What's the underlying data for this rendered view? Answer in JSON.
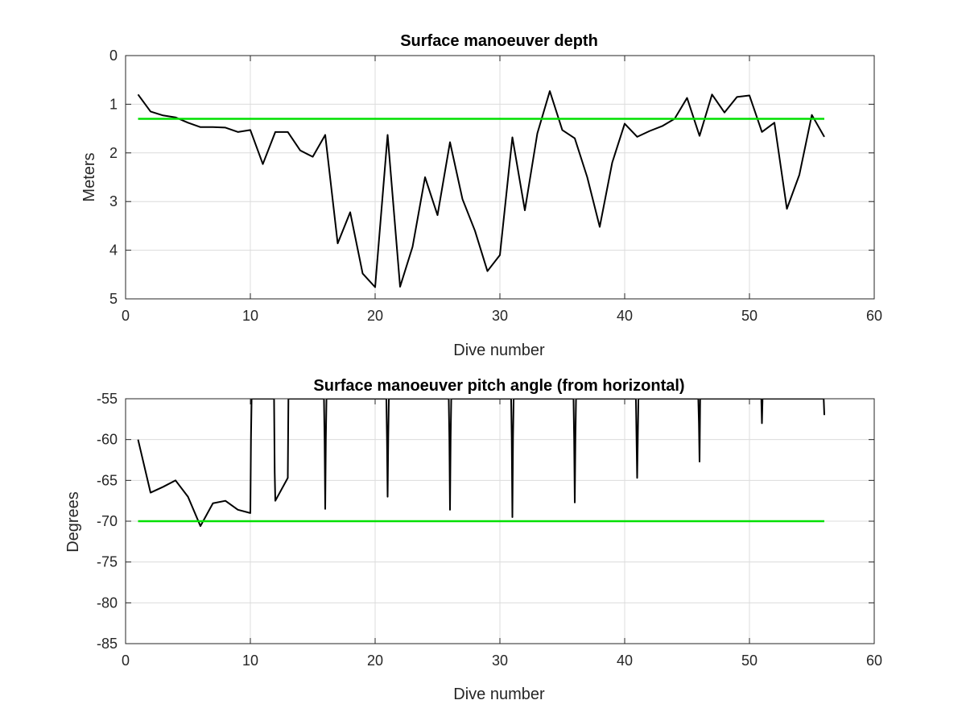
{
  "chart_data": [
    {
      "type": "line",
      "title": "Surface manoeuver depth",
      "xlabel": "Dive number",
      "ylabel": "Meters",
      "xlim": [
        0,
        60
      ],
      "ylim": [
        0,
        5
      ],
      "y_reversed": true,
      "grid": true,
      "xticks": [
        "0",
        "10",
        "20",
        "30",
        "40",
        "50",
        "60"
      ],
      "yticks": [
        "0",
        "1",
        "2",
        "3",
        "4",
        "5"
      ],
      "series": [
        {
          "color": "#000000",
          "x": [
            1,
            2,
            3,
            4,
            5,
            6,
            7,
            8,
            9,
            10,
            11,
            12,
            13,
            14,
            15,
            16,
            17,
            18,
            19,
            20,
            21,
            22,
            23,
            24,
            25,
            26,
            27,
            28,
            29,
            30,
            31,
            32,
            33,
            34,
            35,
            36,
            37,
            38,
            39,
            40,
            41,
            42,
            43,
            44,
            45,
            46,
            47,
            48,
            49,
            50,
            51,
            52,
            53,
            54,
            55,
            56
          ],
          "y": [
            0.8,
            1.15,
            1.23,
            1.27,
            1.38,
            1.47,
            1.47,
            1.48,
            1.57,
            1.53,
            2.23,
            1.57,
            1.57,
            1.95,
            2.08,
            1.63,
            3.86,
            3.22,
            4.48,
            4.76,
            1.63,
            4.75,
            3.93,
            2.5,
            3.28,
            1.78,
            2.95,
            3.6,
            4.43,
            4.1,
            1.68,
            3.18,
            1.6,
            0.73,
            1.53,
            1.7,
            2.5,
            3.52,
            2.2,
            1.4,
            1.67,
            1.55,
            1.45,
            1.3,
            0.87,
            1.65,
            0.8,
            1.17,
            0.85,
            0.82,
            1.57,
            1.38,
            3.15,
            2.45,
            1.22,
            1.67
          ]
        },
        {
          "color": "#00e000",
          "x": [
            1,
            56
          ],
          "y": [
            1.3,
            1.3
          ]
        }
      ]
    },
    {
      "type": "line",
      "title": "Surface manoeuver pitch angle (from horizontal)",
      "xlabel": "Dive number",
      "ylabel": "Degrees",
      "xlim": [
        0,
        60
      ],
      "ylim": [
        -85,
        -55
      ],
      "grid": true,
      "xticks": [
        "0",
        "10",
        "20",
        "30",
        "40",
        "50",
        "60"
      ],
      "yticks": [
        "-55",
        "-60",
        "-65",
        "-70",
        "-75",
        "-80",
        "-85"
      ],
      "series": [
        {
          "color": "#000000",
          "x": [
            1,
            2,
            3,
            4,
            5,
            6,
            7,
            8,
            9,
            10,
            10.05,
            10.1,
            11.9,
            11.95,
            12,
            13,
            13.05,
            15.9,
            15.95,
            16,
            16.05,
            16.1,
            20.9,
            20.95,
            21,
            21.05,
            21.1,
            25.9,
            25.95,
            26,
            26.05,
            26.1,
            30.9,
            30.95,
            31,
            31.05,
            31.1,
            35.9,
            35.95,
            36,
            36.05,
            36.1,
            40.9,
            40.95,
            41,
            41.05,
            41.1,
            45.9,
            45.95,
            46,
            46.05,
            50.95,
            51,
            51.05,
            55.95,
            56
          ],
          "y": [
            -60,
            -66.5,
            -65.8,
            -65,
            -67,
            -70.6,
            -67.8,
            -67.5,
            -68.6,
            -69,
            -60,
            -55,
            -55,
            -64,
            -67.5,
            -64.7,
            -55,
            -55,
            -60,
            -68.5,
            -60,
            -55,
            -55,
            -60,
            -67,
            -60,
            -55,
            -55,
            -60,
            -68.6,
            -60,
            -55,
            -55,
            -60,
            -69.5,
            -60,
            -55,
            -55,
            -60,
            -67.7,
            -60,
            -55,
            -55,
            -60,
            -64.7,
            -60,
            -55,
            -55,
            -58,
            -62.7,
            -55,
            -55,
            -58,
            -55,
            -55,
            -57
          ]
        },
        {
          "color": "#00e000",
          "x": [
            1,
            56
          ],
          "y": [
            -70,
            -70
          ]
        }
      ]
    }
  ]
}
